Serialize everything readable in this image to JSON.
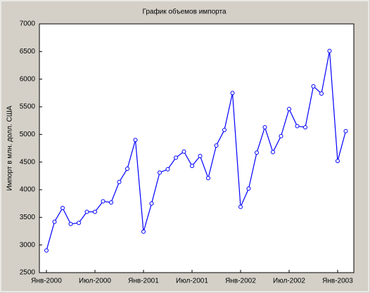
{
  "chart_data": {
    "type": "line",
    "title": "График объемов импорта",
    "y_label": "Импорт в млн. долл. США",
    "categories": [
      "Янв-2000",
      null,
      null,
      null,
      null,
      null,
      "Июл-2000",
      null,
      null,
      null,
      null,
      null,
      "Янв-2001",
      null,
      null,
      null,
      null,
      null,
      "Июл-2001",
      null,
      null,
      null,
      null,
      null,
      "Янв-2002",
      null,
      null,
      null,
      null,
      null,
      "Июл-2002",
      null,
      null,
      null,
      null,
      null,
      "Янв-2003",
      null
    ],
    "series": [
      {
        "color": "#0000ff",
        "values": [
          2900,
          3420,
          3670,
          3380,
          3400,
          3600,
          3600,
          3790,
          3770,
          4140,
          4380,
          4900,
          3240,
          3750,
          4310,
          4370,
          4580,
          4690,
          4430,
          4610,
          4210,
          4800,
          5080,
          5750,
          3690,
          4020,
          4670,
          5130,
          4680,
          4970,
          5460,
          5150,
          5130,
          5870,
          5740,
          6510,
          4520,
          5060
        ]
      }
    ],
    "ylim": [
      2500,
      7000
    ],
    "yticks": [
      2500,
      3000,
      3500,
      4000,
      4500,
      5000,
      5500,
      6000,
      6500,
      7000
    ],
    "grid": false
  }
}
